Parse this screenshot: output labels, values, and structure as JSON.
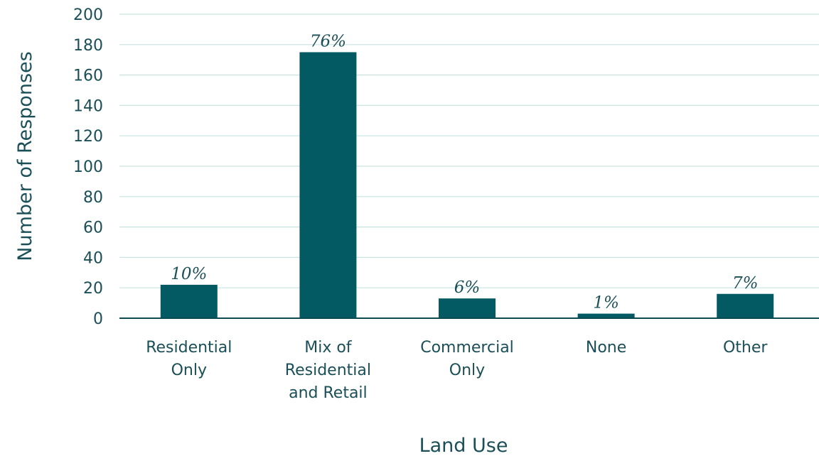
{
  "chart_data": {
    "type": "bar",
    "title": "",
    "xlabel": "Land Use",
    "ylabel": "Number of Responses",
    "ylim": [
      0,
      200
    ],
    "yticks": [
      0,
      20,
      40,
      60,
      80,
      100,
      120,
      140,
      160,
      180,
      200
    ],
    "grid": true,
    "legend": "none",
    "categories": [
      [
        "Residential",
        "Only"
      ],
      [
        "Mix of",
        "Residential",
        "and Retail"
      ],
      [
        "Commercial",
        "Only"
      ],
      [
        "None"
      ],
      [
        "Other"
      ]
    ],
    "values": [
      22,
      175,
      13,
      3,
      16
    ],
    "data_labels": [
      "10%",
      "76%",
      "6%",
      "1%",
      "7%"
    ],
    "colors": {
      "bar": "#035a63",
      "text": "#1b4f57",
      "grid": "#c9e3e1",
      "axis": "#0b4a52"
    }
  }
}
